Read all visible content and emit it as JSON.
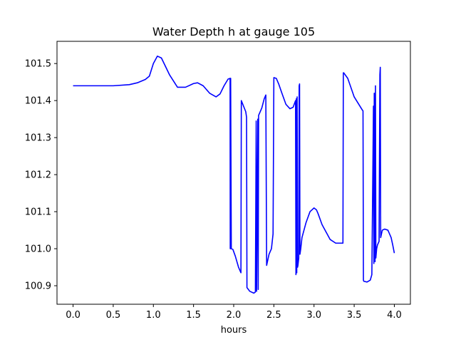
{
  "chart_data": {
    "type": "line",
    "title": "Water Depth h at gauge 105",
    "xlabel": "hours",
    "ylabel": "",
    "xlim": [
      -0.2,
      4.2
    ],
    "ylim": [
      100.85,
      101.56
    ],
    "x_ticks": [
      0.0,
      0.5,
      1.0,
      1.5,
      2.0,
      2.5,
      3.0,
      3.5,
      4.0
    ],
    "x_tick_labels": [
      "0.0",
      "0.5",
      "1.0",
      "1.5",
      "2.0",
      "2.5",
      "3.0",
      "3.5",
      "4.0"
    ],
    "y_ticks": [
      100.9,
      101.0,
      101.1,
      101.2,
      101.3,
      101.4,
      101.5
    ],
    "y_tick_labels": [
      "100.9",
      "101.0",
      "101.1",
      "101.2",
      "101.3",
      "101.4",
      "101.5"
    ],
    "grid": false,
    "legend": "none",
    "series": [
      {
        "color": "#0000ff",
        "x": [
          0.0,
          0.5,
          0.7,
          0.8,
          0.9,
          0.95,
          1.0,
          1.05,
          1.1,
          1.2,
          1.3,
          1.4,
          1.5,
          1.55,
          1.62,
          1.7,
          1.78,
          1.83,
          1.88,
          1.93,
          1.955,
          1.957,
          1.96,
          1.962,
          1.97,
          1.99,
          2.02,
          2.06,
          2.09,
          2.095,
          2.15,
          2.16,
          2.165,
          2.2,
          2.25,
          2.27,
          2.28,
          2.285,
          2.3,
          2.305,
          2.31,
          2.35,
          2.38,
          2.4,
          2.41,
          2.44,
          2.47,
          2.49,
          2.5,
          2.53,
          2.56,
          2.6,
          2.65,
          2.7,
          2.74,
          2.77,
          2.775,
          2.78,
          2.785,
          2.79,
          2.795,
          2.8,
          2.81,
          2.815,
          2.82,
          2.825,
          2.835,
          2.85,
          2.9,
          2.95,
          3.0,
          3.03,
          3.05,
          3.1,
          3.2,
          3.27,
          3.3,
          3.35,
          3.36,
          3.365,
          3.37,
          3.42,
          3.5,
          3.6,
          3.61,
          3.615,
          3.62,
          3.66,
          3.7,
          3.72,
          3.74,
          3.745,
          3.75,
          3.76,
          3.765,
          3.77,
          3.78,
          3.785,
          3.79,
          3.81,
          3.82,
          3.825,
          3.83,
          3.84,
          3.845,
          3.85,
          3.88,
          3.92,
          3.96,
          3.98,
          4.0
        ],
        "y": [
          101.44,
          101.44,
          101.443,
          101.448,
          101.457,
          101.466,
          101.5,
          101.52,
          101.515,
          101.47,
          101.436,
          101.436,
          101.446,
          101.448,
          101.44,
          101.42,
          101.41,
          101.418,
          101.44,
          101.458,
          101.46,
          101.0,
          101.0,
          101.46,
          101.0,
          100.998,
          100.98,
          100.95,
          100.935,
          101.4,
          101.37,
          101.355,
          100.895,
          100.885,
          100.88,
          100.883,
          101.345,
          100.885,
          101.35,
          100.89,
          101.36,
          101.38,
          101.405,
          101.415,
          100.955,
          100.985,
          101.0,
          101.04,
          101.462,
          101.46,
          101.445,
          101.42,
          101.39,
          101.378,
          101.382,
          101.4,
          100.93,
          101.405,
          100.935,
          101.41,
          100.95,
          100.955,
          100.975,
          101.44,
          101.445,
          100.985,
          101.0,
          101.03,
          101.07,
          101.1,
          101.11,
          101.105,
          101.095,
          101.065,
          101.025,
          101.015,
          101.015,
          101.015,
          101.015,
          101.475,
          101.475,
          101.46,
          101.41,
          101.375,
          101.372,
          100.915,
          100.912,
          100.91,
          100.915,
          100.93,
          101.385,
          100.96,
          101.42,
          100.965,
          101.44,
          100.975,
          101.0,
          101.005,
          101.01,
          101.02,
          101.47,
          101.49,
          101.03,
          101.04,
          101.045,
          101.05,
          101.053,
          101.05,
          101.03,
          101.01,
          100.988
        ]
      }
    ]
  }
}
